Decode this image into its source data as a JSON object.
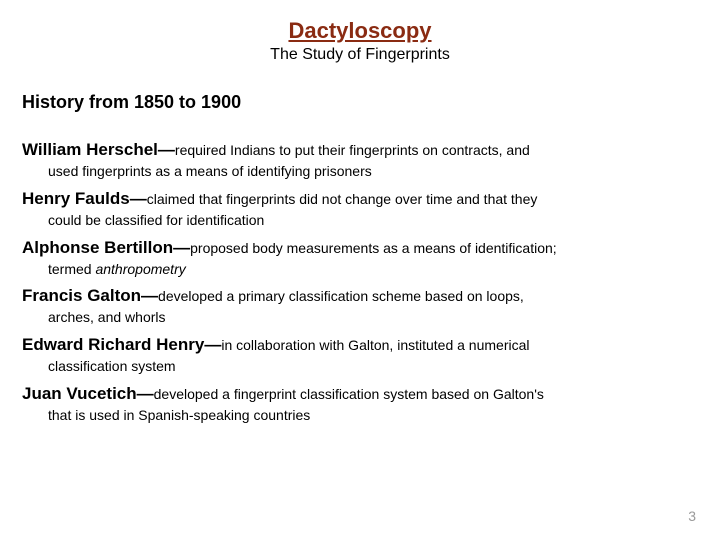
{
  "colors": {
    "title": "#8a2b12",
    "body": "#000000",
    "pageNum": "#9a9a9a"
  },
  "title": "Dactyloscopy",
  "subtitle": "The Study of Fingerprints",
  "sectionHeading": "History from 1850 to 1900",
  "entries": [
    {
      "name": "William Herschel",
      "desc": "required Indians to put their fingerprints on contracts, and",
      "cont": "used fingerprints as a means of identifying prisoners"
    },
    {
      "name": "Henry Faulds",
      "desc": "claimed that fingerprints did not change over time and that they",
      "cont": "could be classified for identification"
    },
    {
      "name": "Alphonse Bertillon",
      "desc": "proposed body measurements as a means of identification;",
      "cont": "termed ",
      "contItalic": "anthropometry"
    },
    {
      "name": "Francis Galton",
      "desc": "developed a primary classification scheme based on loops,",
      "cont": "arches, and whorls"
    },
    {
      "name": "Edward Richard Henry",
      "desc": "in collaboration with Galton, instituted a numerical",
      "cont": "classification system"
    },
    {
      "name": "Juan Vucetich",
      "desc": "developed a fingerprint classification system based on Galton's",
      "cont": "that is used in Spanish-speaking countries"
    }
  ],
  "pageNumber": "3"
}
